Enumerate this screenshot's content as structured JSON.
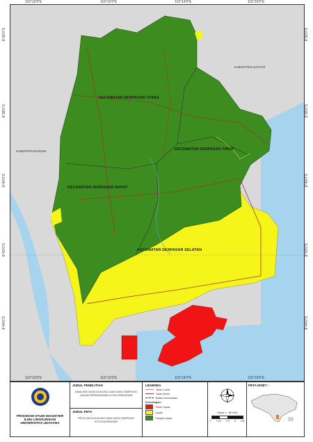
{
  "coords": {
    "top": [
      "115°10'0\"E",
      "115°12'0\"E",
      "115°14'0\"E",
      "115°16'0\"E"
    ],
    "bottom": [
      "115°10'0\"E",
      "115°12'0\"E",
      "115°14'0\"E",
      "115°16'0\"E"
    ],
    "left": [
      "8°36'0\"S",
      "8°38'0\"S",
      "8°40'0\"S",
      "8°42'0\"S",
      "8°44'0\"S"
    ],
    "right": [
      "8°36'0\"S",
      "8°38'0\"S",
      "8°40'0\"S",
      "8°42'0\"S",
      "8°44'0\"S"
    ]
  },
  "districts": {
    "utara": "KECAMATAN DENPASAR UTARA",
    "timur": "KECAMATAN DENPASAR TIMUR",
    "barat": "KECAMATAN DENPASAR BARAT",
    "selatan": "KECAMATAN DENPASAR SELATAN"
  },
  "neighbors": {
    "badung": "KABUPATEN BADUNG",
    "gianyar": "KABUPATEN GIANYAR"
  },
  "colors": {
    "green": "#3d8c1f",
    "yellow": "#f5f51a",
    "red": "#f01414",
    "sea": "#a6d4ef",
    "land_outside": "#d9d9d9"
  },
  "footer": {
    "institution": {
      "line1": "PROGRAM STUDI MAGISTER",
      "line2": "ILMU LINGKUNGAN",
      "line3": "UNIVERSITAS UDAYANA"
    },
    "research": {
      "label": "JUDUL PENELITIAN",
      "text1": "ANALISIS DAYA DUKUNG DAN DAYA TAMPUNG",
      "text2": "LAHAN PERMUKIMAN KOTA DENPASAR"
    },
    "map_title": {
      "label": "JUDUL PETA",
      "text1": "PETA DAYA DUKUNG DAN DAYA TAMPUNG",
      "text2": "KOTA DENPASAR"
    },
    "legend": {
      "title": "LEGENDA",
      "items": [
        "Jalan Lokal",
        "Jalan Arteri",
        "Batas Kecamatan"
      ],
      "keterangan": "Keterangan :",
      "classes": [
        "Tidak Layak",
        "Layak",
        "Sangat Layak"
      ]
    },
    "scale": {
      "text": "Skala 1 : 80.000",
      "ticks": [
        "0",
        "1,25",
        "2,5",
        "5",
        "KM"
      ]
    },
    "inset": {
      "title": "PETA INSET :"
    }
  }
}
